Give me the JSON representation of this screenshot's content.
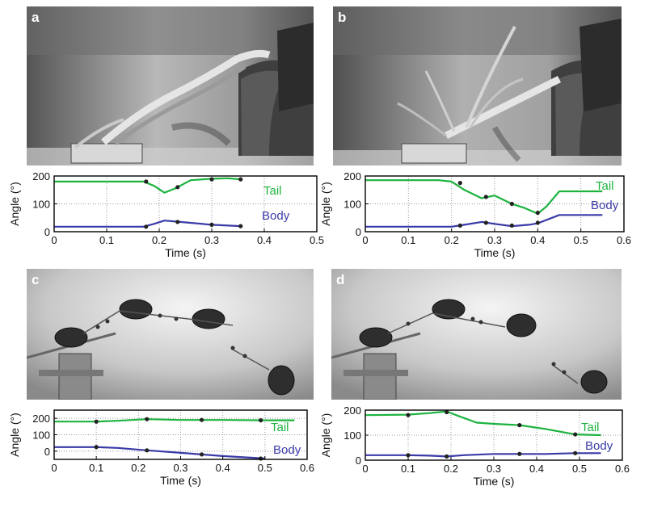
{
  "colors": {
    "tail": "#1db33f",
    "body": "#3a3aa8",
    "marker": "#222222",
    "grid": "#9a9a9a"
  },
  "chart_data": [
    {
      "panel": "a",
      "type": "line",
      "xlabel": "Time (s)",
      "ylabel": "Angle (°)",
      "xlim": [
        0,
        0.5
      ],
      "ylim": [
        0,
        200
      ],
      "xticks": [
        "0",
        "0.1",
        "0.2",
        "0.3",
        "0.4",
        "0.5"
      ],
      "yticks": [
        "0",
        "100",
        "200"
      ],
      "grid": true,
      "series": [
        {
          "name": "Tail",
          "color_key": "tail",
          "x": [
            0,
            0.17,
            0.19,
            0.21,
            0.23,
            0.26,
            0.3,
            0.33,
            0.355
          ],
          "y": [
            180,
            180,
            165,
            140,
            155,
            185,
            190,
            192,
            188
          ],
          "markers": [
            [
              0.175,
              180
            ],
            [
              0.235,
              160
            ],
            [
              0.3,
              188
            ],
            [
              0.355,
              188
            ]
          ]
        },
        {
          "name": "Body",
          "color_key": "body",
          "x": [
            0,
            0.17,
            0.19,
            0.21,
            0.24,
            0.3,
            0.355
          ],
          "y": [
            18,
            18,
            28,
            40,
            35,
            25,
            20
          ],
          "markers": [
            [
              0.175,
              18
            ],
            [
              0.235,
              35
            ],
            [
              0.3,
              25
            ],
            [
              0.355,
              20
            ]
          ]
        }
      ]
    },
    {
      "panel": "b",
      "type": "line",
      "xlabel": "Time (s)",
      "ylabel": "Angle (°)",
      "xlim": [
        0,
        0.6
      ],
      "ylim": [
        0,
        200
      ],
      "xticks": [
        "0",
        "0.1",
        "0.2",
        "0.3",
        "0.4",
        "0.5",
        "0.6"
      ],
      "yticks": [
        "0",
        "100",
        "200"
      ],
      "grid": true,
      "series": [
        {
          "name": "Tail",
          "color_key": "tail",
          "x": [
            0,
            0.17,
            0.2,
            0.23,
            0.27,
            0.3,
            0.34,
            0.37,
            0.4,
            0.42,
            0.45,
            0.55
          ],
          "y": [
            185,
            185,
            180,
            150,
            120,
            130,
            100,
            85,
            65,
            90,
            145,
            145
          ],
          "markers": [
            [
              0.22,
              175
            ],
            [
              0.28,
              125
            ],
            [
              0.34,
              100
            ],
            [
              0.4,
              68
            ]
          ]
        },
        {
          "name": "Body",
          "color_key": "body",
          "x": [
            0,
            0.2,
            0.23,
            0.27,
            0.3,
            0.34,
            0.38,
            0.4,
            0.45,
            0.55
          ],
          "y": [
            18,
            18,
            25,
            35,
            28,
            20,
            25,
            30,
            60,
            60
          ],
          "markers": [
            [
              0.22,
              22
            ],
            [
              0.28,
              32
            ],
            [
              0.34,
              22
            ],
            [
              0.4,
              32
            ]
          ]
        }
      ]
    },
    {
      "panel": "c",
      "type": "line",
      "xlabel": "Time (s)",
      "ylabel": "Angle (°)",
      "xlim": [
        0,
        0.6
      ],
      "ylim": [
        -50,
        250
      ],
      "xticks": [
        "0",
        "0.1",
        "0.2",
        "0.3",
        "0.4",
        "0.5",
        "0.6"
      ],
      "yticks": [
        "0",
        "100",
        "200"
      ],
      "grid": true,
      "series": [
        {
          "name": "Tail",
          "color_key": "tail",
          "x": [
            0,
            0.1,
            0.15,
            0.22,
            0.3,
            0.4,
            0.5,
            0.57
          ],
          "y": [
            180,
            180,
            185,
            195,
            190,
            190,
            188,
            188
          ],
          "markers": [
            [
              0.1,
              180
            ],
            [
              0.22,
              195
            ],
            [
              0.35,
              190
            ],
            [
              0.49,
              188
            ]
          ]
        },
        {
          "name": "Body",
          "color_key": "body",
          "x": [
            0,
            0.1,
            0.15,
            0.22,
            0.3,
            0.35,
            0.4,
            0.47,
            0.5
          ],
          "y": [
            25,
            25,
            20,
            5,
            -10,
            -20,
            -30,
            -40,
            -45
          ],
          "markers": [
            [
              0.1,
              25
            ],
            [
              0.22,
              5
            ],
            [
              0.35,
              -20
            ],
            [
              0.49,
              -45
            ]
          ]
        }
      ]
    },
    {
      "panel": "d",
      "type": "line",
      "xlabel": "Time (s)",
      "ylabel": "Angle (°)",
      "xlim": [
        0,
        0.6
      ],
      "ylim": [
        0,
        200
      ],
      "xticks": [
        "0",
        "0.1",
        "0.2",
        "0.3",
        "0.4",
        "0.5",
        "0.6"
      ],
      "yticks": [
        "0",
        "100",
        "200"
      ],
      "grid": true,
      "series": [
        {
          "name": "Tail",
          "color_key": "tail",
          "x": [
            0,
            0.1,
            0.15,
            0.19,
            0.22,
            0.26,
            0.3,
            0.36,
            0.42,
            0.49,
            0.55
          ],
          "y": [
            180,
            182,
            188,
            195,
            175,
            150,
            145,
            140,
            125,
            103,
            100
          ],
          "markers": [
            [
              0.1,
              180
            ],
            [
              0.19,
              192
            ],
            [
              0.36,
              140
            ],
            [
              0.49,
              103
            ]
          ]
        },
        {
          "name": "Body",
          "color_key": "body",
          "x": [
            0,
            0.1,
            0.15,
            0.19,
            0.23,
            0.3,
            0.36,
            0.42,
            0.49,
            0.55
          ],
          "y": [
            20,
            20,
            18,
            15,
            20,
            25,
            25,
            25,
            28,
            28
          ],
          "markers": [
            [
              0.1,
              20
            ],
            [
              0.19,
              15
            ],
            [
              0.36,
              25
            ],
            [
              0.49,
              28
            ]
          ]
        }
      ]
    }
  ]
}
